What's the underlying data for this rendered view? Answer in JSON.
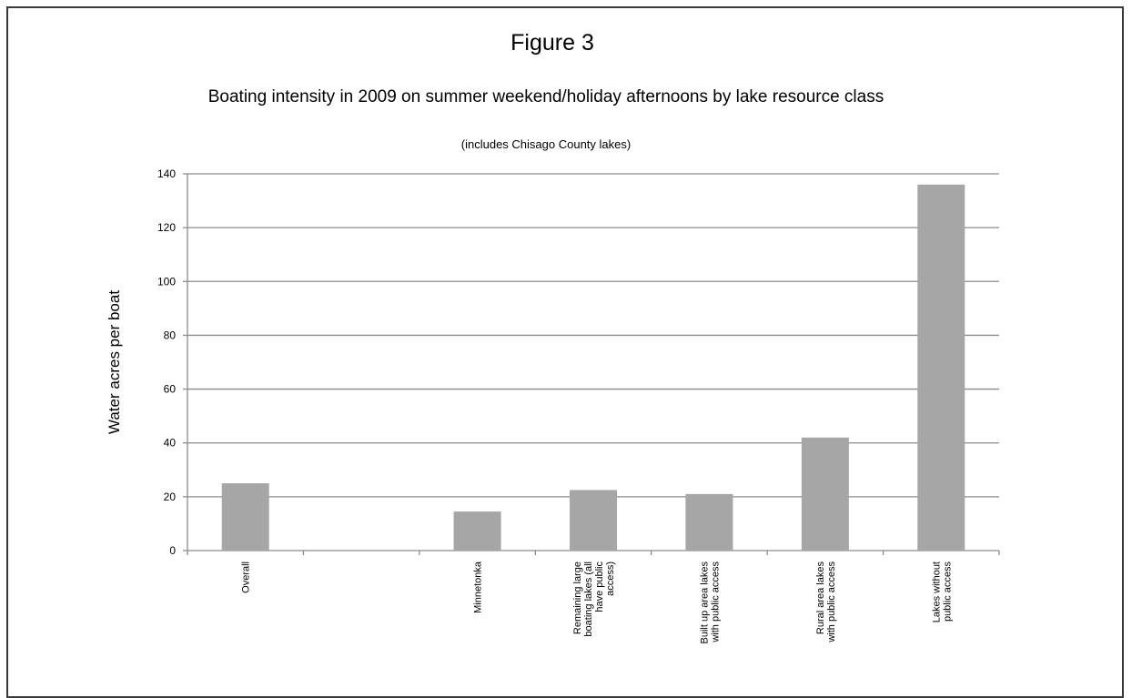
{
  "figure_label": "Figure 3",
  "chart_data": {
    "type": "bar",
    "title": "Boating intensity in 2009 on summer weekend/holiday afternoons by lake resource class",
    "subtitle": "(includes Chisago County lakes)",
    "xlabel": "",
    "ylabel": "Water acres per boat",
    "ylim": [
      0,
      140
    ],
    "yticks": [
      0,
      20,
      40,
      60,
      80,
      100,
      120,
      140
    ],
    "grid": true,
    "legend": "none",
    "categories": [
      [
        "Overall"
      ],
      [
        ""
      ],
      [
        "Minnetonka"
      ],
      [
        "Remaining large",
        "boating lakes (all",
        "have public",
        "access)"
      ],
      [
        "Built up area lakes",
        "with public access"
      ],
      [
        "Rural area lakes",
        "with public access"
      ],
      [
        "Lakes without",
        "public access"
      ]
    ],
    "values": [
      25,
      null,
      14.5,
      22.5,
      21,
      42,
      136
    ],
    "colors": {
      "bar": "#a6a6a6",
      "grid": "#8c8c8c",
      "axis": "#8c8c8c"
    }
  }
}
